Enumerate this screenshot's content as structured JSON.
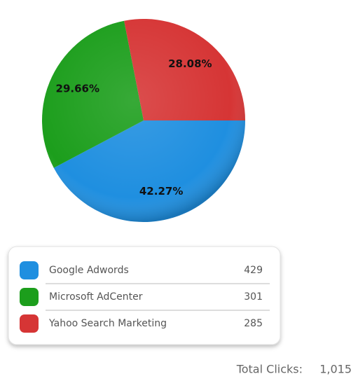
{
  "chart_data": {
    "type": "pie",
    "categories": [
      "Google Adwords",
      "Microsoft AdCenter",
      "Yahoo Search Marketing"
    ],
    "values": [
      42.27,
      29.66,
      28.08
    ],
    "value_labels": [
      "42.27%",
      "29.66%",
      "28.08%"
    ],
    "colors": [
      "#1f8fe0",
      "#1c9e1c",
      "#d63535"
    ],
    "counts": [
      429,
      301,
      285
    ],
    "total_label": "Total Clicks:",
    "total": "1,015"
  }
}
